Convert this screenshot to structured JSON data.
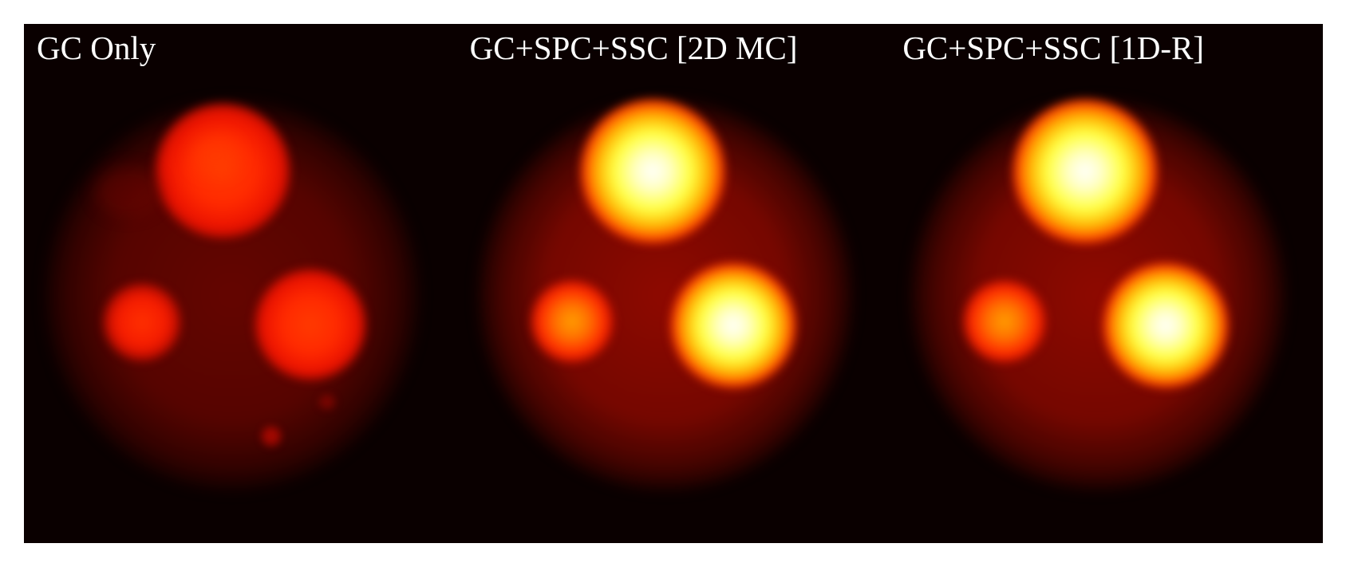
{
  "panels": [
    {
      "title": "GC Only",
      "style": "noisy"
    },
    {
      "title": "GC+SPC+SSC [2D MC]",
      "style": "corrected"
    },
    {
      "title": "GC+SPC+SSC [1D-R]",
      "style": "corrected"
    }
  ],
  "colormap": {
    "background": "#0a0000",
    "low": "#8c0800",
    "mid": "#ff3000",
    "high": "#ffff40",
    "peak": "#ffffff"
  }
}
